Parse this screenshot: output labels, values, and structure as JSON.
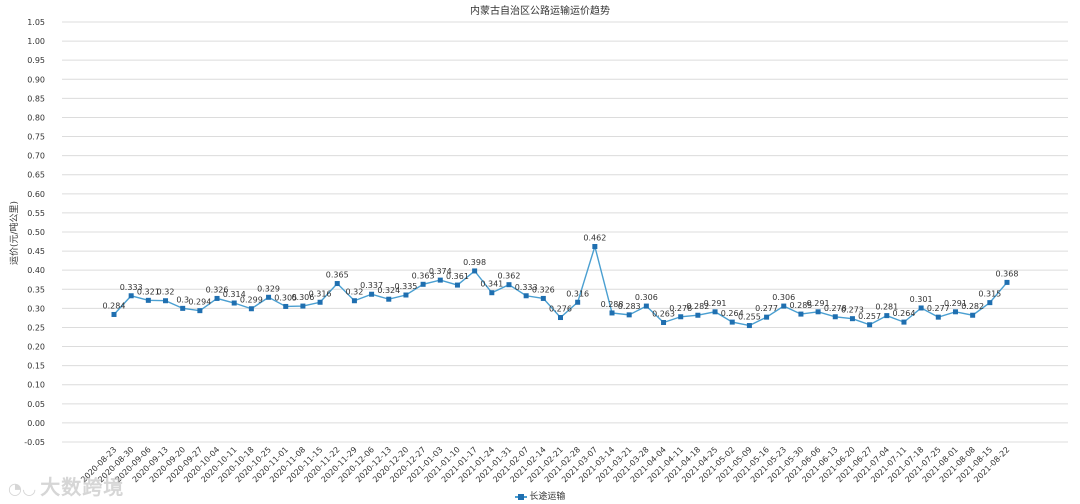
{
  "watermark": {
    "text": "大数跨境",
    "icon": "brand-logo-icon"
  },
  "colors": {
    "line": "#4a9fd1",
    "marker": "#1f6fb0",
    "grid": "#dcdcdc"
  },
  "chart_data": {
    "type": "line",
    "title": "内蒙古自治区公路运输运价趋势",
    "ylabel": "运价(元/吨公里)",
    "xlabel": "",
    "ylim": [
      -0.05,
      1.05
    ],
    "yticks": [
      "-0.05",
      "0.00",
      "0.05",
      "0.10",
      "0.15",
      "0.20",
      "0.25",
      "0.30",
      "0.35",
      "0.40",
      "0.45",
      "0.50",
      "0.55",
      "0.60",
      "0.65",
      "0.70",
      "0.75",
      "0.80",
      "0.85",
      "0.90",
      "0.95",
      "1.00",
      "1.05"
    ],
    "grid": true,
    "legend_position": "bottom-center",
    "categories": [
      "2020-08-23",
      "2020-08-30",
      "2020-09-06",
      "2020-09-13",
      "2020-09-20",
      "2020-09-27",
      "2020-10-04",
      "2020-10-11",
      "2020-10-18",
      "2020-10-25",
      "2020-11-01",
      "2020-11-08",
      "2020-11-15",
      "2020-11-22",
      "2020-11-29",
      "2020-12-06",
      "2020-12-13",
      "2020-12-20",
      "2020-12-27",
      "2021-01-03",
      "2021-01-10",
      "2021-01-17",
      "2021-01-24",
      "2021-01-31",
      "2021-02-07",
      "2021-02-14",
      "2021-02-21",
      "2021-02-28",
      "2021-03-07",
      "2021-03-14",
      "2021-03-21",
      "2021-03-28",
      "2021-04-04",
      "2021-04-11",
      "2021-04-18",
      "2021-04-25",
      "2021-05-02",
      "2021-05-09",
      "2021-05-16",
      "2021-05-23",
      "2021-05-30",
      "2021-06-06",
      "2021-06-13",
      "2021-06-20",
      "2021-06-27",
      "2021-07-04",
      "2021-07-11",
      "2021-07-18",
      "2021-07-25",
      "2021-08-01",
      "2021-08-08",
      "2021-08-15",
      "2021-08-22"
    ],
    "series": [
      {
        "name": "长途运输",
        "values": [
          0.284,
          0.333,
          0.321,
          0.32,
          0.3,
          0.294,
          0.326,
          0.314,
          0.299,
          0.329,
          0.305,
          0.306,
          0.316,
          0.365,
          0.32,
          0.337,
          0.324,
          0.335,
          0.363,
          0.374,
          0.361,
          0.398,
          0.341,
          0.362,
          0.333,
          0.326,
          0.276,
          0.316,
          0.462,
          0.288,
          0.283,
          0.306,
          0.263,
          0.278,
          0.282,
          0.291,
          0.264,
          0.255,
          0.277,
          0.306,
          0.285,
          0.291,
          0.278,
          0.273,
          0.257,
          0.281,
          0.264,
          0.301,
          0.277,
          0.291,
          0.282,
          0.315,
          0.368
        ],
        "labels": [
          "0.284",
          "0.333",
          "0.321",
          "0.32",
          "0.3",
          "0.294",
          "0.326",
          "0.314",
          "0.299",
          "0.329",
          "0.305",
          "0.306",
          "0.316",
          "0.365",
          "0.32",
          "0.337",
          "0.324",
          "0.335",
          "0.363",
          "0.374",
          "0.361",
          "0.398",
          "0.341",
          "0.362",
          "0.333",
          "0.326",
          "0.276",
          "0.316",
          "0.462",
          "0.288",
          "0.283",
          "0.306",
          "0.263",
          "0.278",
          "0.282",
          "0.291",
          "0.264",
          "0.255",
          "0.277",
          "0.306",
          "0.285",
          "0.291",
          "0.278",
          "0.273",
          "0.257",
          "0.281",
          "0.264",
          "0.301",
          "0.277",
          "0.291",
          "0.282",
          "0.315",
          "0.368"
        ]
      }
    ]
  }
}
